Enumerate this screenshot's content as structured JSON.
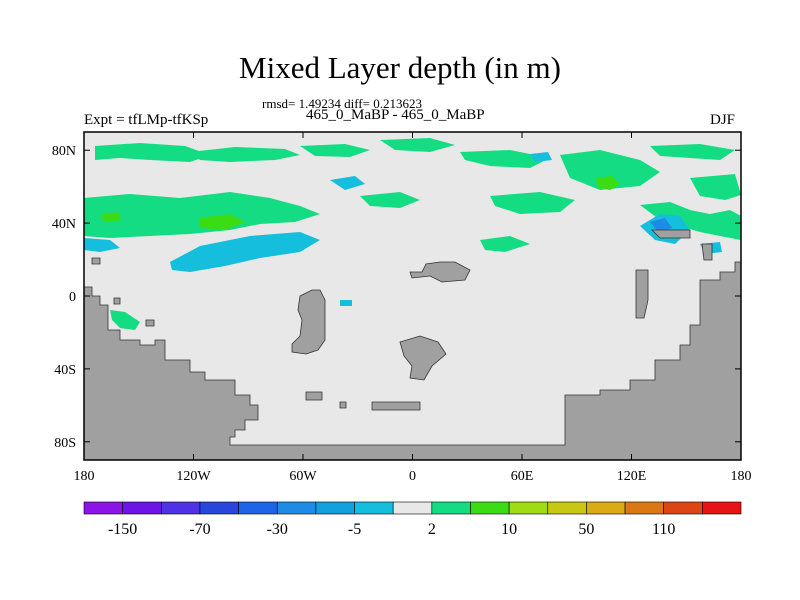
{
  "title": "Mixed Layer depth (in m)",
  "stats": "rmsd= 1.49234 diff= 0.213623",
  "experiment": "Expt = tfLMp-tfKSp",
  "runs": "465_0_MaBP - 465_0_MaBP",
  "season": "DJF",
  "map": {
    "projection": "cylindrical equidistant",
    "lon_range": [
      -180,
      180
    ],
    "lat_range": [
      -90,
      90
    ],
    "x_ticks": [
      {
        "value": -180,
        "label": "180"
      },
      {
        "value": -120,
        "label": "120W"
      },
      {
        "value": -60,
        "label": "60W"
      },
      {
        "value": 0,
        "label": "0"
      },
      {
        "value": 60,
        "label": "60E"
      },
      {
        "value": 120,
        "label": "120E"
      },
      {
        "value": 180,
        "label": "180"
      }
    ],
    "y_ticks": [
      {
        "value": 80,
        "label": "80N"
      },
      {
        "value": 40,
        "label": "40N"
      },
      {
        "value": 0,
        "label": "0"
      },
      {
        "value": -40,
        "label": "40S"
      },
      {
        "value": -80,
        "label": "80S"
      }
    ],
    "ocean_color": "#e8e8e8",
    "land_color": "#a0a0a0",
    "frame_color": "#000000"
  },
  "colorbar": {
    "colors": [
      "#8c14e6",
      "#6e14e6",
      "#5032e6",
      "#2846dc",
      "#1e64e6",
      "#1e8ce6",
      "#14a0dc",
      "#14bedc",
      "#e8e8e8",
      "#14dc82",
      "#3cdc14",
      "#a0dc14",
      "#c8c814",
      "#dcaa14",
      "#dc7814",
      "#dc4614",
      "#e61414"
    ],
    "labels": [
      "-150",
      "-70",
      "-30",
      "-5",
      "2",
      "10",
      "50",
      "110"
    ]
  }
}
